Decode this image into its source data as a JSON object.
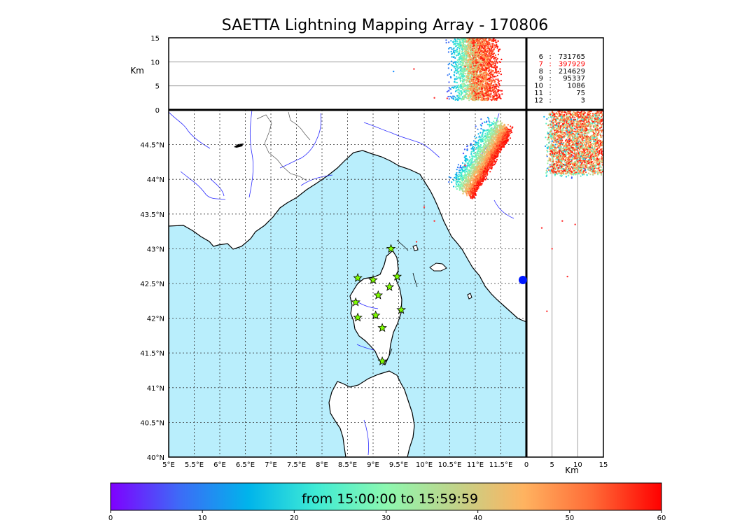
{
  "title": "SAETTA Lightning Mapping Array - 170806",
  "colorbar": {
    "label": "from 15:00:00 to 15:59:59",
    "ticks": [
      "0",
      "10",
      "20",
      "30",
      "40",
      "50",
      "60"
    ],
    "range": [
      0,
      60
    ],
    "colors": [
      "#7f00ff",
      "#3d6bf7",
      "#00b4eb",
      "#40ecd4",
      "#8cf8b0",
      "#c0d48a",
      "#ffb360",
      "#ff6a36",
      "#ff0000"
    ]
  },
  "colors": {
    "sea": "#b9eefc",
    "coast": "#000000",
    "rivers": "#0000ff",
    "stations": "#7fff00",
    "highlight": "#ff0000"
  },
  "chart_data": [
    {
      "type": "scatter",
      "name": "altitude-longitude",
      "ylabel": "Km",
      "xlim": [
        5,
        12
      ],
      "ylim": [
        0,
        15
      ],
      "yticks": [
        "0",
        "5",
        "10",
        "15"
      ]
    },
    {
      "type": "scatter",
      "name": "map",
      "xlim": [
        5,
        12
      ],
      "ylim": [
        40,
        45
      ],
      "xticks": [
        "5°E",
        "5.5°E",
        "6°E",
        "6.5°E",
        "7°E",
        "7.5°E",
        "8°E",
        "8.5°E",
        "9°E",
        "9.5°E",
        "10°E",
        "10.5°E",
        "11°E",
        "11.5°E"
      ],
      "yticks": [
        "40°N",
        "40.5°N",
        "41°N",
        "41.5°N",
        "42°N",
        "42.5°N",
        "43°N",
        "43.5°N",
        "44°N",
        "44.5°N"
      ],
      "grid": true,
      "stations": [
        {
          "lon": 8.7,
          "lat": 42.58
        },
        {
          "lon": 9.0,
          "lat": 42.55
        },
        {
          "lon": 9.35,
          "lat": 43.0
        },
        {
          "lon": 9.47,
          "lat": 42.6
        },
        {
          "lon": 9.32,
          "lat": 42.45
        },
        {
          "lon": 9.1,
          "lat": 42.33
        },
        {
          "lon": 8.66,
          "lat": 42.23
        },
        {
          "lon": 9.55,
          "lat": 42.12
        },
        {
          "lon": 9.05,
          "lat": 42.04
        },
        {
          "lon": 8.7,
          "lat": 42.01
        },
        {
          "lon": 9.18,
          "lat": 41.86
        },
        {
          "lon": 9.18,
          "lat": 41.38
        }
      ]
    },
    {
      "type": "scatter",
      "name": "latitude-altitude",
      "xlabel": "Km",
      "xlim": [
        0,
        15
      ],
      "xticks": [
        "0",
        "5",
        "10",
        "15"
      ],
      "ylim": [
        40,
        45
      ]
    }
  ],
  "station_counts": [
    {
      "stations": "6",
      "sep": ":",
      "count": "731765"
    },
    {
      "stations": "7",
      "sep": ":",
      "count": "397929",
      "highlight": true
    },
    {
      "stations": "8",
      "sep": ":",
      "count": "214629"
    },
    {
      "stations": "9",
      "sep": ":",
      "count": "95337"
    },
    {
      "stations": "10",
      "sep": ":",
      "count": "1086"
    },
    {
      "stations": "11",
      "sep": ":",
      "count": "75"
    },
    {
      "stations": "12",
      "sep": ":",
      "count": "3"
    }
  ]
}
